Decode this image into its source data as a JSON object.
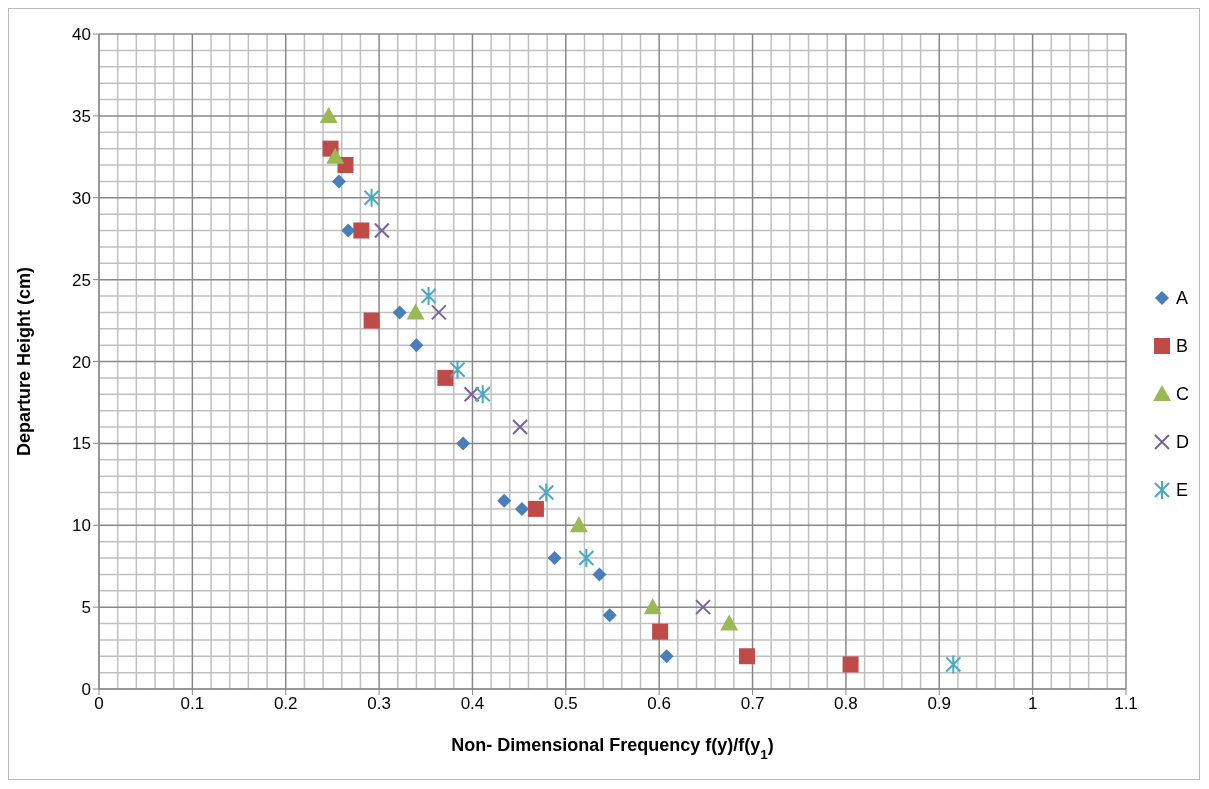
{
  "chart_data": {
    "type": "scatter",
    "xlabel": "Non- Dimensional Frequency f(y)/f(y$_{1}$)",
    "ylabel": "Departure Height (cm)",
    "xlim": [
      0,
      1.1
    ],
    "xticks": [
      0,
      0.1,
      0.2,
      0.3,
      0.4,
      0.5,
      0.6,
      0.7,
      0.8,
      0.9,
      1,
      1.1
    ],
    "ylim": [
      0,
      40
    ],
    "yticks": [
      0,
      5,
      10,
      15,
      20,
      25,
      30,
      35,
      40
    ],
    "grid": true,
    "legend": "right",
    "series": [
      {
        "name": "A",
        "color": "#4a7ebb",
        "x": [
          0.257,
          0.267,
          0.322,
          0.34,
          0.39,
          0.434,
          0.453,
          0.488,
          0.536,
          0.547,
          0.608
        ],
        "values": [
          31,
          28,
          23,
          21,
          15,
          11.5,
          11,
          8,
          7,
          4.5,
          2
        ]
      },
      {
        "name": "B",
        "color": "#be4b48",
        "x": [
          0.248,
          0.264,
          0.281,
          0.292,
          0.371,
          0.468,
          0.601,
          0.694,
          0.805
        ],
        "values": [
          33,
          32,
          28,
          22.5,
          19,
          11,
          3.5,
          2,
          1.5
        ]
      },
      {
        "name": "C",
        "color": "#98b954",
        "x": [
          0.246,
          0.253,
          0.339,
          0.514,
          0.593,
          0.675
        ],
        "values": [
          35,
          32.5,
          23,
          10,
          5,
          4
        ]
      },
      {
        "name": "D",
        "color": "#7d60a0",
        "x": [
          0.303,
          0.364,
          0.399,
          0.451,
          0.647
        ],
        "values": [
          28,
          23,
          18,
          16,
          5
        ]
      },
      {
        "name": "E",
        "color": "#46aac5",
        "x": [
          0.292,
          0.353,
          0.384,
          0.411,
          0.479,
          0.522,
          0.915
        ],
        "values": [
          30,
          24,
          19.5,
          18,
          12,
          8,
          1.5
        ]
      }
    ]
  }
}
